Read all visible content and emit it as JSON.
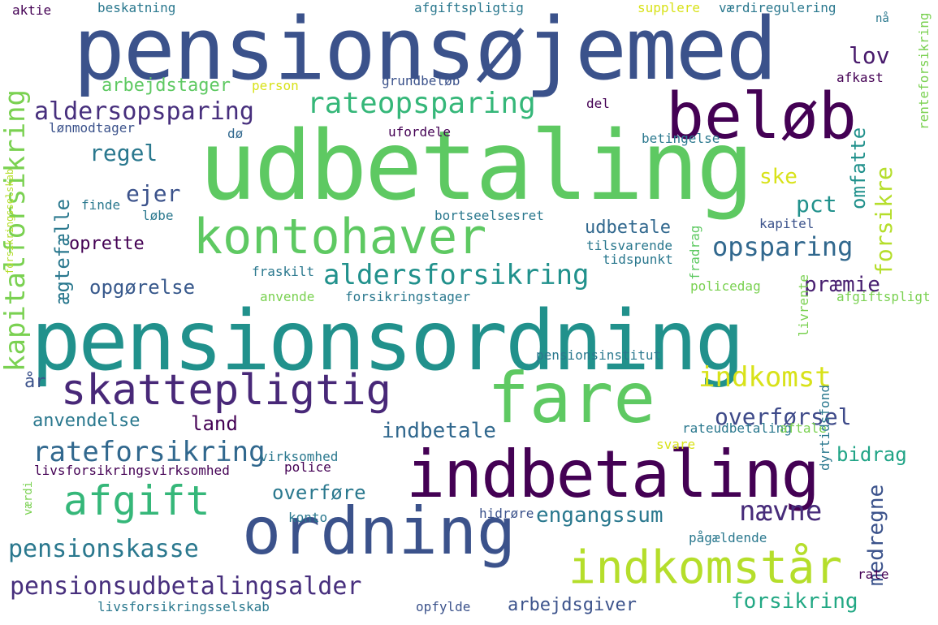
{
  "words": [
    {
      "text": "pensionsøjemed",
      "color": "#3b528b"
    },
    {
      "text": "udbetaling",
      "color": "#5ec962"
    },
    {
      "text": "pensionsordning",
      "color": "#21918c"
    },
    {
      "text": "beløb",
      "color": "#440154"
    },
    {
      "text": "kontohaver",
      "color": "#5ec962"
    },
    {
      "text": "fare",
      "color": "#5ec962"
    },
    {
      "text": "indbetaling",
      "color": "#440154"
    },
    {
      "text": "ordning",
      "color": "#3b528b"
    },
    {
      "text": "skattepligtig",
      "color": "#482878"
    },
    {
      "text": "indkomstår",
      "color": "#b5de2b"
    },
    {
      "text": "afgift",
      "color": "#35b779"
    },
    {
      "text": "rateopsparing",
      "color": "#35b779"
    },
    {
      "text": "rateforsikring",
      "color": "#31688e"
    },
    {
      "text": "pensionsudbetalingsalder",
      "color": "#472f7d"
    },
    {
      "text": "aldersforsikring",
      "color": "#21918c"
    },
    {
      "text": "opsparing",
      "color": "#31688e"
    },
    {
      "text": "aldersopsparing",
      "color": "#472f7d"
    },
    {
      "text": "indkomst",
      "color": "#d8e219"
    },
    {
      "text": "kapitalforsikring",
      "color": "#7ad151"
    },
    {
      "text": "overførsel",
      "color": "#3e4a89"
    },
    {
      "text": "pensionskasse",
      "color": "#2a788e"
    },
    {
      "text": "nævne",
      "color": "#472c7a"
    },
    {
      "text": "indbetale",
      "color": "#31688e"
    },
    {
      "text": "engangssum",
      "color": "#2a788e"
    },
    {
      "text": "forsikring",
      "color": "#22a884"
    },
    {
      "text": "arbejdsgiver",
      "color": "#3b528b"
    },
    {
      "text": "medregne",
      "color": "#3b528b"
    },
    {
      "text": "arbejdstager",
      "color": "#5ec962"
    },
    {
      "text": "regel",
      "color": "#2a788e"
    },
    {
      "text": "ejer",
      "color": "#3b528b"
    },
    {
      "text": "ske",
      "color": "#d8e219"
    },
    {
      "text": "pct",
      "color": "#21918c"
    },
    {
      "text": "lov",
      "color": "#481a6c"
    },
    {
      "text": "omfatte",
      "color": "#21918c"
    },
    {
      "text": "forsikre",
      "color": "#b5de2b"
    },
    {
      "text": "opgørelse",
      "color": "#38598c"
    },
    {
      "text": "præmie",
      "color": "#481f70"
    },
    {
      "text": "anvendelse",
      "color": "#2a788e"
    },
    {
      "text": "land",
      "color": "#440154"
    },
    {
      "text": "bidrag",
      "color": "#20a486"
    },
    {
      "text": "overføre",
      "color": "#2a788e"
    },
    {
      "text": "oprette",
      "color": "#440154"
    },
    {
      "text": "ægtefælle",
      "color": "#2a788e"
    },
    {
      "text": "udbetale",
      "color": "#31688e"
    },
    {
      "text": "år",
      "color": "#3b528b"
    },
    {
      "text": "beskatning",
      "color": "#2a788e"
    },
    {
      "text": "afgiftspligtig",
      "color": "#2a788e"
    },
    {
      "text": "supplere",
      "color": "#d8e219"
    },
    {
      "text": "værdiregulering",
      "color": "#2a788e"
    },
    {
      "text": "aktie",
      "color": "#440154"
    },
    {
      "text": "grundbeløb",
      "color": "#3b528b"
    },
    {
      "text": "person",
      "color": "#d8e219"
    },
    {
      "text": "afkast",
      "color": "#440154"
    },
    {
      "text": "lønmodtager",
      "color": "#3b528b"
    },
    {
      "text": "dø",
      "color": "#31688e"
    },
    {
      "text": "ufordele",
      "color": "#440154"
    },
    {
      "text": "del",
      "color": "#440154"
    },
    {
      "text": "betingelse",
      "color": "#2a788e"
    },
    {
      "text": "finde",
      "color": "#2a788e"
    },
    {
      "text": "løbe",
      "color": "#2a788e"
    },
    {
      "text": "bortseelsesret",
      "color": "#2a788e"
    },
    {
      "text": "kapitel",
      "color": "#3b528b"
    },
    {
      "text": "tilsvarende",
      "color": "#2a788e"
    },
    {
      "text": "tidspunkt",
      "color": "#2a788e"
    },
    {
      "text": "fradrag",
      "color": "#5ec962"
    },
    {
      "text": "fraskilt",
      "color": "#2a788e"
    },
    {
      "text": "policedag",
      "color": "#7ad151"
    },
    {
      "text": "anvende",
      "color": "#7ad151"
    },
    {
      "text": "forsikringstager",
      "color": "#2a788e"
    },
    {
      "text": "afgiftspligt",
      "color": "#7ad151"
    },
    {
      "text": "livrente",
      "color": "#7ad151"
    },
    {
      "text": "pensionsinstitut",
      "color": "#2a788e"
    },
    {
      "text": "rateudbetaling",
      "color": "#2a788e"
    },
    {
      "text": "aftale",
      "color": "#7ad151"
    },
    {
      "text": "svare",
      "color": "#d8e219"
    },
    {
      "text": "dyrtidsfond",
      "color": "#2a788e"
    },
    {
      "text": "virksomhed",
      "color": "#2a788e"
    },
    {
      "text": "police",
      "color": "#440154"
    },
    {
      "text": "livsforsikringsvirksomhed",
      "color": "#440154"
    },
    {
      "text": "konto",
      "color": "#2a788e"
    },
    {
      "text": "hidrøre",
      "color": "#3b528b"
    },
    {
      "text": "pågældende",
      "color": "#2a788e"
    },
    {
      "text": "rate",
      "color": "#440154"
    },
    {
      "text": "opfylde",
      "color": "#3b528b"
    },
    {
      "text": "livsforsikringsselskab",
      "color": "#2a788e"
    },
    {
      "text": "renteforsikring",
      "color": "#7ad151"
    },
    {
      "text": "værdi",
      "color": "#7ad151"
    },
    {
      "text": "forsikringsselskab",
      "color": "#b5de2b"
    },
    {
      "text": "nå",
      "color": "#2a788e"
    }
  ]
}
